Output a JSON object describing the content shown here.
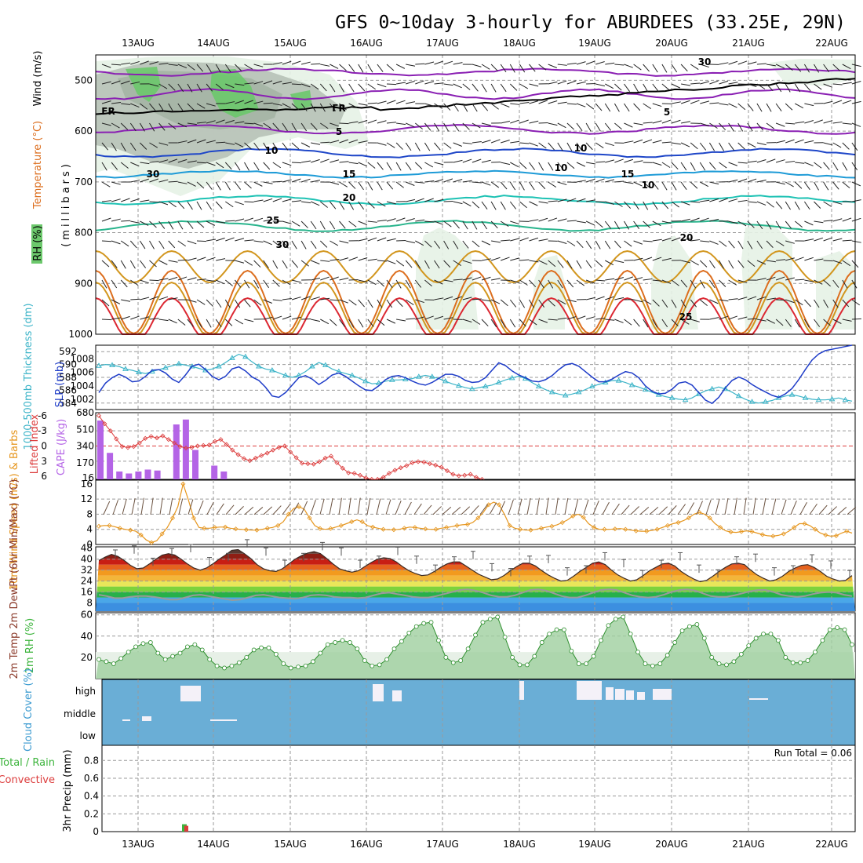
{
  "title": "GFS 0~10day 3-hourly for ABURDEES (33.25E, 29N)",
  "dates": [
    "13AUG",
    "14AUG",
    "15AUG",
    "16AUG",
    "17AUG",
    "18AUG",
    "19AUG",
    "20AUG",
    "21AUG",
    "22AUG"
  ],
  "colors": {
    "rh_green_dark": "#6cc86c",
    "rh_green_light": "#e6f2e6",
    "rh_gray": "#b7c2b7",
    "purple": "#8a1fb3",
    "blue": "#1e46c8",
    "lightblue": "#1e9bd7",
    "teal": "#1ec2b4",
    "green_contour": "#28b48c",
    "orange": "#d2961e",
    "dark_orange": "#dc6e1e",
    "red": "#dc2832",
    "thickness": "#3cb4c8",
    "slp": "#1e3cc8",
    "lifted": "#dc3c3c",
    "cape": "#b464e6",
    "wind_speed": "#e6961e",
    "rh2m": "#3cb43c",
    "cloud_bg": "#6aaed6"
  },
  "chart_data": [
    {
      "panel": "upper-air",
      "type": "contour",
      "ylabel_wind": "Wind (m/s)",
      "ylabel_temp": "Temperature (°C)",
      "ylabel_rh": "RH (%)",
      "ylabel_mb": "(millibars)",
      "yticks": [
        500,
        600,
        700,
        800,
        900,
        1000
      ],
      "contour_labels": [
        "FR",
        "FR",
        "5",
        "5",
        "10",
        "10",
        "15",
        "15",
        "20",
        "20",
        "25",
        "25",
        "30",
        "30",
        "10",
        "10",
        "30"
      ]
    },
    {
      "panel": "thickness-slp",
      "type": "line",
      "ylabel_left": "1000-500mb Thickness (dm)",
      "ylabel_right": "SLP (mb)",
      "yticks_left": [
        584,
        586,
        588,
        590,
        592
      ],
      "yticks_right": [
        1002,
        1004,
        1006,
        1008
      ],
      "series": [
        {
          "name": "thickness",
          "values": [
            589.8,
            590.0,
            589.9,
            589.7,
            589.3,
            589.1,
            588.8,
            588.6,
            588.9,
            589.2,
            589.5,
            589.8,
            590.1,
            589.9,
            589.7,
            589.4,
            589.1,
            589.3,
            589.7,
            590.3,
            591.0,
            591.6,
            591.2,
            590.4,
            589.7,
            589.3,
            589.1,
            588.7,
            588.3,
            588.0,
            588.3,
            588.9,
            589.7,
            590.3,
            589.9,
            589.3,
            588.9,
            588.6,
            588.3,
            587.9,
            587.4,
            587.0,
            587.1,
            587.4,
            587.6,
            587.6,
            587.7,
            587.8,
            588.1,
            588.3,
            588.1,
            587.8,
            587.4,
            587.0,
            586.7,
            586.4,
            586.2,
            586.4,
            586.6,
            586.8,
            587.2,
            587.6,
            587.9,
            588.2,
            587.8,
            587.2,
            586.6,
            586.1,
            585.7,
            585.4,
            585.2,
            585.4,
            585.7,
            586.1,
            586.6,
            586.9,
            587.2,
            587.5,
            587.5,
            587.2,
            586.8,
            586.5,
            586.1,
            585.7,
            585.3,
            585.0,
            584.8,
            584.6,
            584.5,
            584.8,
            585.4,
            585.9,
            586.2,
            586.5,
            586.2,
            585.7,
            585.1,
            584.6,
            584.2,
            584.0,
            584.2,
            584.4,
            584.8,
            585.1,
            585.3,
            585.1,
            584.8,
            584.6,
            584.5,
            584.5,
            584.6,
            584.8,
            584.5,
            584.3
          ]
        },
        {
          "name": "SLP",
          "values": [
            1003.0,
            1004.4,
            1005.2,
            1005.7,
            1005.3,
            1004.6,
            1004.7,
            1005.4,
            1006.3,
            1006.4,
            1005.9,
            1005.0,
            1004.5,
            1005.6,
            1006.9,
            1007.2,
            1006.4,
            1005.4,
            1004.9,
            1005.4,
            1006.5,
            1006.8,
            1006.2,
            1005.3,
            1004.8,
            1003.8,
            1002.5,
            1002.3,
            1003.0,
            1004.1,
            1005.2,
            1005.5,
            1005.0,
            1004.2,
            1004.8,
            1005.6,
            1005.9,
            1005.4,
            1004.7,
            1004.0,
            1003.4,
            1003.3,
            1004.0,
            1004.9,
            1005.4,
            1005.5,
            1005.2,
            1004.7,
            1004.3,
            1004.1,
            1004.5,
            1005.1,
            1005.7,
            1005.7,
            1005.4,
            1004.8,
            1004.5,
            1004.6,
            1005.2,
            1006.3,
            1007.4,
            1007.0,
            1006.2,
            1005.6,
            1005.2,
            1004.7,
            1004.6,
            1004.9,
            1005.5,
            1006.4,
            1007.1,
            1007.3,
            1006.9,
            1006.1,
            1005.3,
            1004.6,
            1004.6,
            1005.0,
            1005.6,
            1006.1,
            1005.9,
            1005.2,
            1004.0,
            1003.2,
            1002.8,
            1002.9,
            1003.5,
            1004.4,
            1004.6,
            1004.1,
            1003.0,
            1001.9,
            1001.4,
            1002.3,
            1003.7,
            1004.8,
            1005.3,
            1004.9,
            1004.2,
            1003.6,
            1003.1,
            1002.6,
            1002.3,
            1002.8,
            1003.6,
            1004.9,
            1006.4,
            1007.8,
            1008.7,
            1009.2,
            1009.4,
            1009.6,
            1009.8,
            1010.0
          ]
        }
      ]
    },
    {
      "panel": "instability",
      "type": "bar+line",
      "ylabel_left": "Lifted Index",
      "ylabel_right": "CAPE (J/kg)",
      "yticks_left": [
        -6,
        -3,
        0,
        3,
        6
      ],
      "yticks_right": [
        16,
        170,
        340,
        510,
        680
      ],
      "series": [
        {
          "name": "Lifted Index",
          "values": [
            -6.0,
            -4.4,
            -3.0,
            -1.4,
            0.1,
            0.3,
            0.1,
            -0.6,
            -1.5,
            -1.9,
            -1.6,
            -2.0,
            -1.3,
            -0.6,
            0.1,
            0.4,
            0.3,
            0.0,
            -0.1,
            -0.2,
            -0.9,
            -1.3,
            -0.3,
            0.8,
            1.7,
            2.5,
            2.9,
            2.4,
            1.9,
            1.4,
            0.8,
            0.3,
            0.0,
            1.2,
            2.3,
            3.4,
            3.5,
            3.6,
            3.1,
            2.4,
            2.0,
            3.3,
            4.4,
            5.3,
            5.4,
            5.8,
            6.3,
            6.6,
            6.6,
            6.2,
            5.4,
            4.8,
            4.3,
            3.9,
            3.3,
            3.1,
            3.2,
            3.5,
            3.8,
            4.2,
            4.9,
            5.6,
            5.9,
            5.8,
            5.6,
            6.2,
            6.6
          ]
        },
        {
          "name": "CAPE",
          "values": [
            600,
            270,
            80,
            60,
            80,
            100,
            90,
            0,
            560,
            610,
            300,
            0,
            140,
            80,
            0,
            0,
            0,
            0,
            0,
            0,
            0,
            0,
            0,
            0,
            0,
            0,
            0,
            0,
            0,
            0,
            0,
            0,
            0,
            0,
            0,
            0,
            0,
            0,
            0,
            0,
            0,
            0,
            0,
            0,
            0,
            0,
            0,
            0,
            0,
            0,
            0,
            0,
            0,
            0,
            0,
            0,
            0,
            0,
            0,
            0,
            0,
            0,
            0,
            0,
            0,
            0,
            0,
            0,
            0,
            0,
            0,
            0,
            0,
            0,
            0,
            0,
            0,
            0,
            0,
            0,
            0,
            0,
            0,
            0,
            0,
            0,
            0,
            0,
            0,
            0,
            0,
            0,
            0,
            0,
            0,
            0,
            0,
            0,
            0,
            0
          ]
        }
      ]
    },
    {
      "panel": "10m-wind",
      "type": "line",
      "ylabel": "10m Wind Speed (m/s) & Barbs",
      "yticks": [
        0,
        4,
        8,
        12,
        16
      ],
      "series": [
        {
          "name": "10m wind speed",
          "values": [
            4.8,
            5.0,
            5.0,
            4.7,
            4.3,
            4.0,
            3.8,
            3.5,
            2.5,
            1.2,
            0.5,
            1.0,
            2.8,
            4.5,
            7.0,
            10.0,
            16.0,
            11.8,
            7.0,
            4.5,
            4.3,
            4.3,
            4.5,
            4.6,
            4.6,
            4.3,
            4.1,
            4.0,
            3.9,
            3.8,
            3.8,
            4.0,
            4.3,
            4.5,
            5.0,
            6.0,
            8.0,
            9.5,
            10.0,
            9.3,
            7.0,
            5.0,
            4.2,
            4.0,
            4.2,
            4.6,
            5.0,
            5.5,
            6.0,
            6.5,
            6.0,
            5.0,
            4.6,
            4.3,
            4.0,
            3.9,
            3.9,
            4.0,
            4.3,
            4.6,
            4.5,
            4.3,
            4.1,
            4.0,
            4.0,
            4.3,
            4.5,
            4.7,
            5.0,
            5.2,
            5.3,
            5.8,
            7.0,
            8.5,
            10.5,
            11.2,
            10.5,
            8.0,
            5.0,
            4.3,
            4.0,
            3.8,
            3.8,
            4.0,
            4.3,
            4.6,
            4.8,
            5.2,
            5.8,
            6.5,
            7.5,
            8.0,
            7.2,
            5.5,
            4.5,
            4.0,
            4.0,
            4.0,
            4.1,
            4.2,
            4.0,
            3.8,
            3.6,
            3.5,
            3.5,
            3.7,
            4.0,
            4.5,
            5.0,
            5.5,
            5.8,
            6.3,
            7.0,
            8.0,
            8.5,
            8.0,
            7.0,
            5.5,
            4.5,
            3.6,
            3.3,
            3.2,
            3.4,
            3.6,
            3.4,
            3.0,
            2.6,
            2.3,
            2.2,
            2.4,
            2.8,
            3.5,
            4.5,
            5.5,
            5.5,
            5.0,
            4.0,
            3.0,
            2.5,
            2.2,
            2.3,
            3.0,
            3.5,
            3.0
          ]
        }
      ]
    },
    {
      "panel": "2m-temp",
      "type": "area",
      "ylabel": "2m Temp 2m DewPt (6hr Min/Max) (°C)",
      "yticks": [
        8,
        16,
        24,
        32,
        40,
        48
      ],
      "series": [
        {
          "name": "2m Temp",
          "values": [
            39.0,
            41.5,
            43.5,
            42.0,
            39.0,
            35.5,
            33.0,
            33.5,
            36.5,
            40.0,
            43.0,
            44.0,
            43.0,
            40.0,
            36.5,
            33.5,
            32.0,
            33.5,
            36.5,
            40.0,
            43.0,
            46.5,
            47.0,
            44.0,
            40.5,
            36.0,
            33.0,
            31.5,
            31.0,
            33.0,
            36.5,
            40.0,
            42.5,
            44.5,
            45.5,
            44.0,
            40.5,
            36.5,
            33.0,
            31.5,
            30.5,
            31.5,
            34.5,
            37.5,
            40.0,
            41.0,
            40.5,
            38.0,
            34.5,
            31.5,
            29.5,
            28.0,
            28.5,
            31.0,
            34.0,
            36.5,
            38.0,
            38.0,
            35.0,
            32.0,
            29.0,
            27.0,
            25.0,
            25.5,
            28.0,
            31.5,
            34.5,
            37.0,
            37.0,
            35.0,
            31.5,
            28.5,
            26.0,
            24.0,
            24.5,
            27.5,
            31.0,
            34.0,
            37.0,
            38.0,
            36.0,
            32.0,
            28.5,
            26.0,
            24.0,
            25.0,
            28.0,
            31.5,
            34.0,
            36.5,
            37.0,
            35.0,
            31.0,
            28.0,
            25.5,
            23.5,
            24.5,
            27.5,
            31.0,
            34.0,
            36.5,
            37.0,
            36.0,
            32.0,
            28.5,
            26.0,
            24.0,
            25.0,
            27.5,
            31.0,
            33.5,
            35.5,
            36.0,
            34.0,
            31.0,
            27.5,
            25.5,
            24.0,
            24.5,
            28.0
          ]
        },
        {
          "name": "2m DewPt",
          "values": [
            14.0,
            13.0,
            11.5,
            11.5,
            12.5,
            13.0,
            13.0,
            12.5,
            11.5,
            10.5,
            10.5,
            12.0,
            13.5,
            14.0,
            13.0,
            12.0,
            11.0,
            10.0,
            10.5,
            12.0,
            13.5,
            14.0,
            13.0,
            12.0,
            11.5,
            11.0,
            12.0,
            13.5,
            14.0,
            13.5,
            12.5,
            12.0,
            12.0,
            11.5,
            12.0,
            13.5,
            15.0,
            15.5,
            14.5,
            13.5,
            12.5,
            12.0,
            12.0,
            13.0,
            14.5,
            16.0,
            17.5,
            18.0,
            17.0,
            15.5,
            13.5,
            12.5,
            12.5,
            13.5,
            15.5,
            17.5,
            18.0,
            17.0,
            15.0,
            13.0,
            12.0,
            12.0,
            13.5,
            15.5,
            17.5,
            18.0,
            17.5,
            15.5,
            13.5,
            12.5,
            12.0,
            12.5,
            14.0,
            16.0,
            17.5,
            18.0,
            17.0,
            15.0,
            13.0,
            12.5,
            12.5,
            13.5,
            15.0,
            16.5,
            17.5,
            17.5,
            16.0,
            14.0,
            13.0,
            12.5,
            13.0,
            14.5,
            15.5,
            16.0,
            15.5,
            14.0,
            13.0
          ]
        }
      ]
    },
    {
      "panel": "2m-rh",
      "type": "area",
      "ylabel": "2m RH (%)",
      "yticks": [
        20,
        40,
        60
      ],
      "series": [
        {
          "name": "2m RH",
          "values": [
            18,
            16,
            14,
            19,
            25,
            30,
            33,
            34,
            24,
            18,
            21,
            24,
            30,
            32,
            27,
            18,
            12,
            10,
            12,
            15,
            20,
            27,
            29,
            29,
            23,
            14,
            10,
            11,
            12,
            16,
            24,
            32,
            34,
            36,
            34,
            28,
            17,
            12,
            13,
            18,
            28,
            35,
            43,
            49,
            52,
            53,
            36,
            20,
            15,
            17,
            28,
            41,
            53,
            56,
            58,
            39,
            20,
            13,
            13,
            21,
            34,
            42,
            46,
            46,
            26,
            14,
            14,
            21,
            36,
            50,
            56,
            58,
            42,
            25,
            14,
            12,
            14,
            22,
            34,
            45,
            49,
            51,
            38,
            20,
            14,
            13,
            16,
            23,
            31,
            38,
            42,
            42,
            36,
            20,
            15,
            15,
            17,
            25,
            36,
            46,
            48,
            46,
            32
          ]
        }
      ]
    },
    {
      "panel": "cloud-cover",
      "type": "bar",
      "ylabel": "Cloud Cover (%)",
      "ytick_labels": [
        "high",
        "middle",
        "low"
      ]
    },
    {
      "panel": "precip",
      "type": "bar",
      "ylabel_total_rain": "Total / Rain",
      "ylabel_convective": "Convective",
      "ylabel": "3hr Precip (mm)",
      "yticks": [
        "0",
        "0.2",
        "0.4",
        "0.6",
        "0.8"
      ],
      "run_total": "Run Total = 0.06",
      "values": [
        0.03,
        0.03
      ]
    }
  ]
}
